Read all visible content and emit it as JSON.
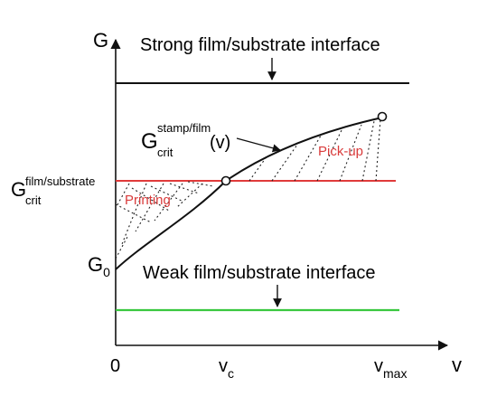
{
  "axes": {
    "y_label": "G",
    "x_label": "v",
    "x_ticks": {
      "origin": "0",
      "vc_base": "v",
      "vc_sub": "c",
      "vmax_base": "v",
      "vmax_sub": "max"
    },
    "y_ticks": {
      "g0_base": "G",
      "g0_sub": "0",
      "gcrit_base": "G",
      "gcrit_sup": "film/substrate",
      "gcrit_sub": "crit"
    }
  },
  "labels": {
    "strong_interface": "Strong film/substrate interface",
    "weak_interface": "Weak film/substrate interface",
    "curve_base": "G",
    "curve_sup": "stamp/film",
    "curve_sub": "crit",
    "curve_arg": "(v)",
    "printing": "Printing",
    "pickup": "Pick-up"
  },
  "colors": {
    "axis": "#111111",
    "strong_line": "#111111",
    "critical_line": "#e03a3a",
    "weak_line": "#39c83f",
    "region_label": "#d93b3b",
    "hatch": "#222222"
  }
}
